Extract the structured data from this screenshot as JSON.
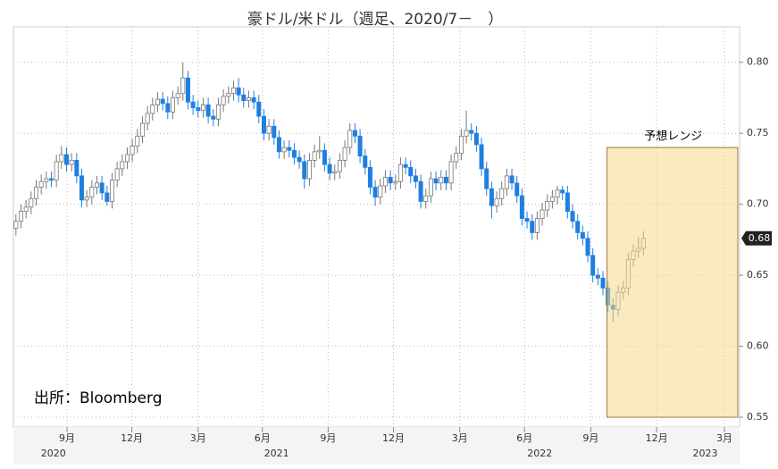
{
  "chart_data": {
    "type": "candlestick",
    "title": "豪ドル/米ドル（週足、2020/7－　）",
    "source": "出所：Bloomberg",
    "up_color": "#ffffff",
    "down_color": "#1f7fe0",
    "open": [
      0.683,
      0.688,
      0.695,
      0.698,
      0.704,
      0.712,
      0.716,
      0.718,
      0.717,
      0.73,
      0.735,
      0.728,
      0.731,
      0.72,
      0.703,
      0.705,
      0.712,
      0.715,
      0.708,
      0.702,
      0.717,
      0.725,
      0.73,
      0.735,
      0.741,
      0.748,
      0.757,
      0.764,
      0.77,
      0.774,
      0.771,
      0.765,
      0.775,
      0.778,
      0.789,
      0.772,
      0.768,
      0.766,
      0.77,
      0.762,
      0.76,
      0.77,
      0.776,
      0.778,
      0.782,
      0.777,
      0.773,
      0.775,
      0.772,
      0.762,
      0.75,
      0.755,
      0.747,
      0.737,
      0.74,
      0.738,
      0.733,
      0.73,
      0.718,
      0.731,
      0.737,
      0.738,
      0.728,
      0.722,
      0.723,
      0.731,
      0.74,
      0.752,
      0.748,
      0.734,
      0.726,
      0.712,
      0.705,
      0.713,
      0.719,
      0.715,
      0.716,
      0.728,
      0.726,
      0.72,
      0.716,
      0.702,
      0.706,
      0.718,
      0.715,
      0.719,
      0.715,
      0.73,
      0.736,
      0.748,
      0.752,
      0.75,
      0.742,
      0.725,
      0.711,
      0.699,
      0.704,
      0.711,
      0.72,
      0.715,
      0.706,
      0.69,
      0.688,
      0.68,
      0.69,
      0.696,
      0.702,
      0.705,
      0.71,
      0.708,
      0.695,
      0.688,
      0.68,
      0.676,
      0.664,
      0.65,
      0.648,
      0.641,
      0.629,
      0.626,
      0.638,
      0.641,
      0.661,
      0.667,
      0.669
    ],
    "high": [
      0.693,
      0.7,
      0.703,
      0.709,
      0.717,
      0.721,
      0.723,
      0.723,
      0.735,
      0.741,
      0.74,
      0.736,
      0.736,
      0.725,
      0.71,
      0.717,
      0.72,
      0.72,
      0.713,
      0.722,
      0.73,
      0.735,
      0.74,
      0.746,
      0.753,
      0.762,
      0.769,
      0.775,
      0.779,
      0.779,
      0.776,
      0.78,
      0.783,
      0.8,
      0.794,
      0.777,
      0.773,
      0.775,
      0.775,
      0.767,
      0.775,
      0.781,
      0.783,
      0.787,
      0.789,
      0.782,
      0.78,
      0.78,
      0.777,
      0.767,
      0.76,
      0.76,
      0.752,
      0.745,
      0.745,
      0.743,
      0.738,
      0.735,
      0.736,
      0.742,
      0.748,
      0.743,
      0.733,
      0.728,
      0.736,
      0.745,
      0.757,
      0.757,
      0.753,
      0.739,
      0.731,
      0.717,
      0.718,
      0.724,
      0.724,
      0.721,
      0.733,
      0.733,
      0.731,
      0.725,
      0.721,
      0.711,
      0.723,
      0.723,
      0.724,
      0.724,
      0.735,
      0.741,
      0.753,
      0.766,
      0.757,
      0.755,
      0.747,
      0.73,
      0.716,
      0.709,
      0.716,
      0.725,
      0.725,
      0.72,
      0.711,
      0.695,
      0.693,
      0.695,
      0.701,
      0.707,
      0.71,
      0.713,
      0.713,
      0.713,
      0.7,
      0.693,
      0.685,
      0.681,
      0.669,
      0.655,
      0.653,
      0.646,
      0.634,
      0.643,
      0.646,
      0.666,
      0.672,
      0.677,
      0.681
    ],
    "low": [
      0.678,
      0.683,
      0.69,
      0.693,
      0.699,
      0.707,
      0.711,
      0.712,
      0.712,
      0.725,
      0.723,
      0.723,
      0.715,
      0.698,
      0.698,
      0.7,
      0.707,
      0.703,
      0.699,
      0.697,
      0.712,
      0.72,
      0.725,
      0.73,
      0.736,
      0.743,
      0.752,
      0.759,
      0.765,
      0.766,
      0.76,
      0.76,
      0.77,
      0.773,
      0.767,
      0.763,
      0.761,
      0.761,
      0.757,
      0.755,
      0.755,
      0.765,
      0.771,
      0.773,
      0.772,
      0.768,
      0.768,
      0.767,
      0.757,
      0.745,
      0.745,
      0.742,
      0.732,
      0.732,
      0.733,
      0.728,
      0.725,
      0.711,
      0.713,
      0.726,
      0.732,
      0.723,
      0.717,
      0.717,
      0.718,
      0.726,
      0.735,
      0.743,
      0.729,
      0.721,
      0.707,
      0.699,
      0.7,
      0.708,
      0.71,
      0.71,
      0.711,
      0.721,
      0.715,
      0.711,
      0.697,
      0.697,
      0.701,
      0.71,
      0.71,
      0.71,
      0.71,
      0.725,
      0.731,
      0.743,
      0.745,
      0.737,
      0.72,
      0.706,
      0.69,
      0.694,
      0.699,
      0.706,
      0.71,
      0.701,
      0.685,
      0.683,
      0.675,
      0.675,
      0.685,
      0.691,
      0.697,
      0.7,
      0.703,
      0.69,
      0.683,
      0.675,
      0.671,
      0.659,
      0.645,
      0.643,
      0.636,
      0.624,
      0.617,
      0.621,
      0.633,
      0.636,
      0.656,
      0.662,
      0.664
    ],
    "close": [
      0.688,
      0.695,
      0.698,
      0.704,
      0.712,
      0.716,
      0.718,
      0.717,
      0.73,
      0.735,
      0.728,
      0.731,
      0.72,
      0.703,
      0.705,
      0.712,
      0.715,
      0.708,
      0.702,
      0.717,
      0.725,
      0.73,
      0.735,
      0.741,
      0.748,
      0.757,
      0.764,
      0.77,
      0.774,
      0.771,
      0.765,
      0.775,
      0.778,
      0.789,
      0.772,
      0.768,
      0.766,
      0.77,
      0.762,
      0.76,
      0.77,
      0.776,
      0.778,
      0.782,
      0.777,
      0.773,
      0.775,
      0.772,
      0.762,
      0.75,
      0.755,
      0.747,
      0.737,
      0.74,
      0.738,
      0.733,
      0.73,
      0.718,
      0.731,
      0.737,
      0.738,
      0.728,
      0.722,
      0.723,
      0.731,
      0.74,
      0.752,
      0.748,
      0.734,
      0.726,
      0.712,
      0.705,
      0.713,
      0.719,
      0.715,
      0.716,
      0.728,
      0.726,
      0.72,
      0.716,
      0.702,
      0.706,
      0.718,
      0.715,
      0.719,
      0.715,
      0.73,
      0.736,
      0.748,
      0.752,
      0.75,
      0.742,
      0.725,
      0.711,
      0.699,
      0.704,
      0.711,
      0.72,
      0.715,
      0.706,
      0.69,
      0.688,
      0.68,
      0.69,
      0.696,
      0.702,
      0.705,
      0.71,
      0.708,
      0.695,
      0.688,
      0.68,
      0.676,
      0.664,
      0.65,
      0.648,
      0.641,
      0.629,
      0.626,
      0.638,
      0.641,
      0.661,
      0.667,
      0.669,
      0.676
    ],
    "last_label": "0.68",
    "xlim": [
      -0.5,
      143
    ],
    "xticks": [
      {
        "value": 10.1,
        "label": "9月"
      },
      {
        "value": 22.9,
        "label": "12月"
      },
      {
        "value": 36.0,
        "label": "3月"
      },
      {
        "value": 48.7,
        "label": "6月"
      },
      {
        "value": 61.7,
        "label": "9月"
      },
      {
        "value": 74.6,
        "label": "12月"
      },
      {
        "value": 87.7,
        "label": "3月"
      },
      {
        "value": 100.5,
        "label": "6月"
      },
      {
        "value": 113.6,
        "label": "9月"
      },
      {
        "value": 126.6,
        "label": "12月"
      },
      {
        "value": 140.0,
        "label": "3月"
      }
    ],
    "year_labels": [
      {
        "value": 7.4,
        "label": "2020"
      },
      {
        "value": 51.5,
        "label": "2021"
      },
      {
        "value": 103.5,
        "label": "2022"
      },
      {
        "value": 136.2,
        "label": "2023"
      }
    ],
    "ylim": [
      0.545,
      0.825
    ],
    "yticks": [
      0.55,
      {
        "value": 0.6,
        "label": "0.60"
      },
      0.65,
      {
        "value": 0.7,
        "label": "0.70"
      },
      0.75,
      {
        "value": 0.8,
        "label": "0.80"
      }
    ],
    "forecast_range": {
      "label": "予想レンジ",
      "low": 0.55,
      "high": 0.74,
      "x": [
        116.8,
        143
      ]
    },
    "grid": true
  }
}
